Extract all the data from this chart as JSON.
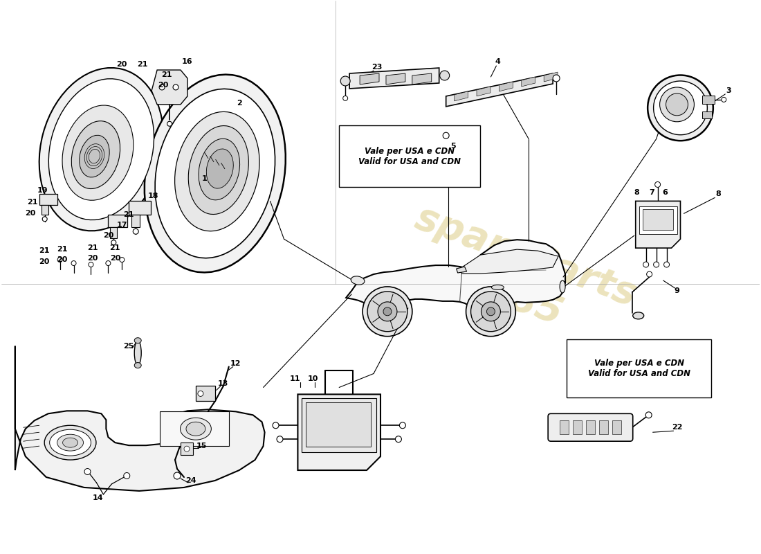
{
  "background_color": "#ffffff",
  "line_color": "#000000",
  "label_fontsize": 8,
  "usa_cdn_text": "Vale per USA e CDN\nValid for USA and CDN",
  "watermark_color": "#c8b040",
  "watermark_alpha": 0.35,
  "part_numbers": [
    "1",
    "2",
    "3",
    "4",
    "5",
    "6",
    "7",
    "8",
    "9",
    "10",
    "11",
    "12",
    "13",
    "14",
    "15",
    "16",
    "17",
    "18",
    "19",
    "20",
    "21",
    "22",
    "23",
    "24",
    "25"
  ]
}
